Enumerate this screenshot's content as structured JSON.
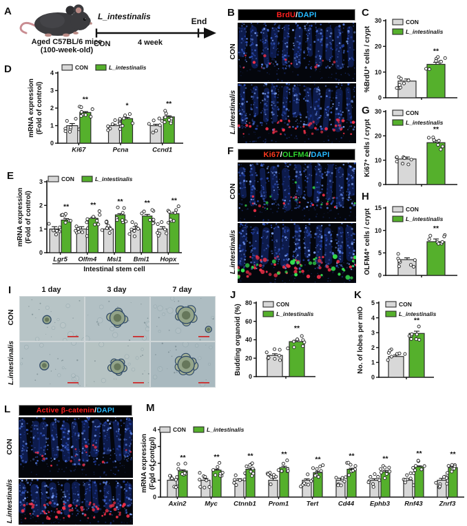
{
  "colors": {
    "con_bar": "#d8d8d8",
    "treat_bar": "#55b02c",
    "axis": "#111111",
    "dot_fill": "#ffffff",
    "brdu_red": "#ff2020",
    "dapi_blue": "#25b9ff",
    "olfm4_green": "#2ed32e",
    "scalebar_red": "#cc2b2b"
  },
  "panels": {
    "A": {
      "letter": "A",
      "caption_line1": "Aged C57BL/6 mice",
      "caption_line2": "(100-week-old)",
      "treatment_label": "L_intestinalis",
      "control_label": "CON",
      "duration_label": "4 week",
      "end_label": "End"
    },
    "B": {
      "letter": "B",
      "title_parts": [
        {
          "text": "BrdU",
          "color": "#ff2020"
        },
        {
          "text": "/",
          "color": "#ffffff"
        },
        {
          "text": "DAPI",
          "color": "#25b9ff"
        }
      ],
      "row_labels": [
        "CON",
        "L.intestinalis"
      ]
    },
    "C": {
      "letter": "C"
    },
    "D": {
      "letter": "D"
    },
    "E": {
      "letter": "E"
    },
    "F": {
      "letter": "F",
      "title_parts": [
        {
          "text": "Ki67",
          "color": "#ff3a1e"
        },
        {
          "text": "/",
          "color": "#ffffff"
        },
        {
          "text": "OLFM4",
          "color": "#2ed32e"
        },
        {
          "text": "/",
          "color": "#ffffff"
        },
        {
          "text": "DAPI",
          "color": "#25b9ff"
        }
      ],
      "row_labels": [
        "CON",
        "L.intestinalis"
      ]
    },
    "G": {
      "letter": "G"
    },
    "H": {
      "letter": "H"
    },
    "I": {
      "letter": "I",
      "col_labels": [
        "1 day",
        "3 day",
        "7 day"
      ],
      "row_labels": [
        "CON",
        "L.intestinalis"
      ]
    },
    "J": {
      "letter": "J"
    },
    "K": {
      "letter": "K"
    },
    "L": {
      "letter": "L",
      "title_parts": [
        {
          "text": "Active β-catenin",
          "color": "#ff2020"
        },
        {
          "text": "/",
          "color": "#ffffff"
        },
        {
          "text": "DAPI",
          "color": "#25b9ff"
        }
      ],
      "row_labels": [
        "CON",
        "L.intestinalis"
      ]
    },
    "M": {
      "letter": "M"
    }
  },
  "chart_data": [
    {
      "id": "D",
      "type": "bar",
      "panel": "D",
      "ylabel": "mRNA expression",
      "ylabel2": "(Fold of control)",
      "ylim": [
        0,
        4
      ],
      "yticks": [
        0,
        1,
        2,
        3,
        4
      ],
      "categories": [
        "Ki67",
        "Pcna",
        "Ccnd1"
      ],
      "legend": [
        "CON",
        "L_intestinalis"
      ],
      "series": [
        {
          "name": "CON",
          "values": [
            1.0,
            1.0,
            1.0
          ],
          "err": [
            0.12,
            0.08,
            0.08
          ]
        },
        {
          "name": "L_intestinalis",
          "values": [
            1.75,
            1.4,
            1.5
          ],
          "err": [
            0.05,
            0.07,
            0.06
          ]
        }
      ],
      "sig": [
        "**",
        "*",
        "**"
      ]
    },
    {
      "id": "E",
      "type": "bar",
      "panel": "E",
      "ylabel": "mRNA expression",
      "ylabel2": "(Fold of control)",
      "ylim": [
        0,
        3
      ],
      "yticks": [
        0,
        1,
        2,
        3
      ],
      "categories": [
        "Lgr5",
        "Olfm4",
        "Msi1",
        "Bmi1",
        "Hopx"
      ],
      "group_label": "Intestinal stem cell",
      "legend": [
        "CON",
        "L_intestinalis"
      ],
      "series": [
        {
          "name": "CON",
          "values": [
            1.0,
            1.0,
            1.0,
            1.0,
            1.0
          ],
          "err": [
            0.1,
            0.1,
            0.1,
            0.1,
            0.1
          ]
        },
        {
          "name": "L_intestinalis",
          "values": [
            1.38,
            1.45,
            1.6,
            1.55,
            1.65
          ],
          "err": [
            0.06,
            0.05,
            0.05,
            0.07,
            0.06
          ]
        }
      ],
      "sig": [
        "**",
        "**",
        "**",
        "**",
        "**"
      ]
    },
    {
      "id": "C",
      "type": "bar",
      "panel": "C",
      "ylabel": "%BrdU⁺ cells / crypt",
      "ylim": [
        0,
        30
      ],
      "yticks": [
        0,
        10,
        20,
        30
      ],
      "categories": [
        ""
      ],
      "legend": [
        "CON",
        "L_intestinalis"
      ],
      "series": [
        {
          "name": "CON",
          "values": [
            6.5
          ],
          "err": [
            0.8
          ]
        },
        {
          "name": "L_intestinalis",
          "values": [
            13.0
          ],
          "err": [
            0.8
          ]
        }
      ],
      "sig": [
        "**"
      ]
    },
    {
      "id": "G",
      "type": "bar",
      "panel": "G",
      "ylabel": "Ki67⁺ cells / crypt",
      "ylim": [
        0,
        30
      ],
      "yticks": [
        0,
        10,
        20,
        30
      ],
      "categories": [
        ""
      ],
      "legend": [
        "CON",
        "L_intestinalis"
      ],
      "series": [
        {
          "name": "CON",
          "values": [
            10.5
          ],
          "err": [
            0.8
          ]
        },
        {
          "name": "L_intestinalis",
          "values": [
            17.2
          ],
          "err": [
            0.9
          ]
        }
      ],
      "sig": [
        "**"
      ]
    },
    {
      "id": "H",
      "type": "bar",
      "panel": "H",
      "ylabel": "OLFM4⁺ cells / crypt",
      "ylim": [
        0,
        15
      ],
      "yticks": [
        0,
        5,
        10,
        15
      ],
      "categories": [
        ""
      ],
      "legend": [
        "CON",
        "L_intestinalis"
      ],
      "series": [
        {
          "name": "CON",
          "values": [
            3.5
          ],
          "err": [
            0.4
          ]
        },
        {
          "name": "L_intestinalis",
          "values": [
            7.5
          ],
          "err": [
            0.6
          ]
        }
      ],
      "sig": [
        "**"
      ]
    },
    {
      "id": "J",
      "type": "bar",
      "panel": "J",
      "ylabel": "Budding organoid (%)",
      "ylim": [
        0,
        80
      ],
      "yticks": [
        0,
        20,
        40,
        60,
        80
      ],
      "categories": [
        ""
      ],
      "legend": [
        "CON",
        "L_intestinalis"
      ],
      "series": [
        {
          "name": "CON",
          "values": [
            23.0
          ],
          "err": [
            1.8
          ]
        },
        {
          "name": "L_intestinalis",
          "values": [
            38.0
          ],
          "err": [
            1.5
          ]
        }
      ],
      "sig": [
        "**"
      ]
    },
    {
      "id": "K",
      "type": "bar",
      "panel": "K",
      "ylabel": "No. of lobes per mIO",
      "ylim": [
        0,
        5
      ],
      "yticks": [
        0,
        1,
        2,
        3,
        4,
        5
      ],
      "categories": [
        ""
      ],
      "legend": [
        "CON",
        "L_intestinalis"
      ],
      "series": [
        {
          "name": "CON",
          "values": [
            1.4
          ],
          "err": [
            0.1
          ]
        },
        {
          "name": "L_intestinalis",
          "values": [
            2.95
          ],
          "err": [
            0.15
          ]
        }
      ],
      "sig": [
        "**"
      ]
    },
    {
      "id": "M",
      "type": "bar",
      "panel": "M",
      "ylabel": "mRNA expression",
      "ylabel2": "(Fold of control)",
      "ylim": [
        0,
        4
      ],
      "yticks": [
        0,
        1,
        2,
        3,
        4
      ],
      "categories": [
        "Axin2",
        "Myc",
        "Ctnnb1",
        "Prom1",
        "Tert",
        "Cd44",
        "Ephb3",
        "Rnf43",
        "Znrf3"
      ],
      "legend": [
        "CON",
        "L_intestinalis"
      ],
      "series": [
        {
          "name": "CON",
          "values": [
            1.0,
            1.0,
            1.0,
            1.0,
            1.0,
            1.0,
            1.0,
            1.0,
            1.0
          ],
          "err": [
            0.08,
            0.1,
            0.09,
            0.12,
            0.08,
            0.12,
            0.09,
            0.1,
            0.11
          ]
        },
        {
          "name": "L_intestinalis",
          "values": [
            1.55,
            1.6,
            1.65,
            1.75,
            1.45,
            1.65,
            1.5,
            1.8,
            1.75
          ],
          "err": [
            0.06,
            0.06,
            0.07,
            0.08,
            0.08,
            0.06,
            0.08,
            0.05,
            0.07
          ]
        }
      ],
      "sig": [
        "**",
        "**",
        "**",
        "**",
        "**",
        "**",
        "**",
        "**",
        "**"
      ]
    }
  ]
}
